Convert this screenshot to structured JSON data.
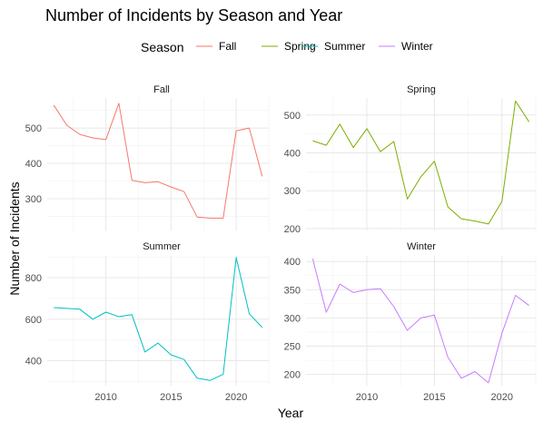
{
  "chart_data": {
    "type": "line",
    "title": "Number of Incidents by Season and Year",
    "xlabel": "Year",
    "ylabel": "Number of Incidents",
    "legend": {
      "title": "Season",
      "placement": "top",
      "entries": [
        "Fall",
        "Spring",
        "Summer",
        "Winter"
      ]
    },
    "grid": true,
    "xlim": [
      2005.5,
      2022.5
    ],
    "x_ticks": [
      2010,
      2015,
      2020
    ],
    "x": [
      2006,
      2007,
      2008,
      2009,
      2010,
      2011,
      2012,
      2013,
      2014,
      2015,
      2016,
      2017,
      2018,
      2019,
      2020,
      2021,
      2022
    ],
    "panels": [
      {
        "name": "Fall",
        "color": "#F8766D",
        "ylim": [
          210,
          585
        ],
        "y_ticks": [
          300,
          400,
          500
        ],
        "values": [
          565,
          508,
          482,
          472,
          467,
          570,
          352,
          345,
          348,
          333,
          320,
          248,
          245,
          245,
          492,
          500,
          363
        ]
      },
      {
        "name": "Spring",
        "color": "#7CAE00",
        "ylim": [
          195,
          545
        ],
        "y_ticks": [
          200,
          300,
          400,
          500
        ],
        "values": [
          432,
          420,
          476,
          414,
          464,
          403,
          430,
          278,
          337,
          378,
          257,
          226,
          220,
          212,
          272,
          537,
          482
        ]
      },
      {
        "name": "Summer",
        "color": "#00BFC4",
        "ylim": [
          280,
          905
        ],
        "y_ticks": [
          400,
          600,
          800
        ],
        "values": [
          656,
          652,
          648,
          600,
          634,
          612,
          622,
          442,
          485,
          428,
          406,
          316,
          305,
          335,
          897,
          626,
          560
        ]
      },
      {
        "name": "Winter",
        "color": "#C77CFF",
        "ylim": [
          180,
          410
        ],
        "y_ticks": [
          200,
          250,
          300,
          350,
          400
        ],
        "values": [
          405,
          310,
          360,
          345,
          350,
          352,
          320,
          278,
          300,
          305,
          230,
          193,
          205,
          185,
          273,
          340,
          322
        ]
      }
    ]
  }
}
